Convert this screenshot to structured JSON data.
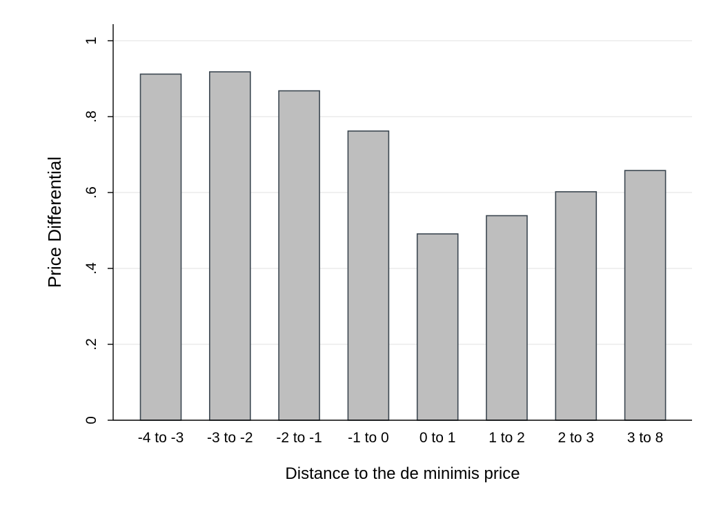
{
  "chart_data": {
    "type": "bar",
    "title": "",
    "xlabel": "Distance to the de minimis price",
    "ylabel": "Price Differential",
    "categories": [
      "-4 to -3",
      "-3 to -2",
      "-2 to -1",
      "-1 to 0",
      "0 to 1",
      "1 to 2",
      "2 to 3",
      "3 to 8"
    ],
    "values": [
      0.912,
      0.918,
      0.868,
      0.762,
      0.491,
      0.539,
      0.602,
      0.658
    ],
    "ylim": [
      0,
      1
    ],
    "yticks": [
      0,
      0.2,
      0.4,
      0.6,
      0.8,
      1
    ],
    "ytick_labels": [
      "0",
      ".2",
      ".4",
      ".6",
      ".8",
      "1"
    ],
    "grid": true,
    "legend": "none",
    "colors": {
      "bar_fill": "#bebebe",
      "bar_stroke": "#3b4650",
      "grid": "#e6e6e6",
      "axis": "#000000"
    }
  }
}
